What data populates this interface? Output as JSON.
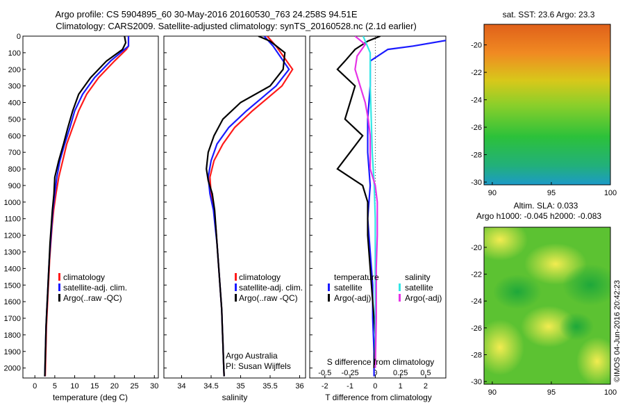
{
  "figure": {
    "title_line1": "Argo profile: CS 5904895_60 30-May-2016 20160530_763 24.258S 94.51E",
    "title_line2": "Climatology: CARS2009. Satellite-adjusted climatology: synTS_20160528.nc (2.1d earlier)",
    "credit": "©IMOS 04-Jun-2016 20:42:23",
    "owner_line1": "Argo Australia",
    "owner_line2": "PI: Susan Wijffels"
  },
  "colors": {
    "climatology": "#ff1a1a",
    "satellite": "#1a1aff",
    "argo": "#000000",
    "sal_satellite": "#33e6e6",
    "sal_argo": "#e633e6"
  },
  "legends": {
    "temp": [
      "climatology",
      "satellite-adj. clim.",
      "Argo(..raw -QC)"
    ],
    "sal": [
      "climatology",
      "satellite-adj. clim.",
      "Argo(..raw -QC)"
    ],
    "diff_headers": {
      "temperature": "temperature",
      "salinity": "salinity"
    },
    "diff_temp": [
      "satellite",
      "Argo(-adj)"
    ],
    "diff_sal": [
      "satellite",
      "Argo(-adj)"
    ]
  },
  "maps": {
    "top_title": "sat. SST: 23.6  Argo: 23.3",
    "bottom_title_line1": "Altim. SLA: 0.033",
    "bottom_title_line2": "Argo h1000: -0.045 h2000: -0.083",
    "yticks": [
      "-20",
      "-22",
      "-24",
      "-26",
      "-28",
      "-30"
    ],
    "xticks": [
      "90",
      "95",
      "100"
    ]
  },
  "chart_data": [
    {
      "type": "line",
      "xlabel": "temperature (deg C)",
      "xticks": [
        "0",
        "5",
        "10",
        "15",
        "20",
        "25",
        "30"
      ],
      "xlim": [
        -3,
        31
      ],
      "ylim": [
        0,
        2060
      ],
      "yticks": [
        "0",
        "100",
        "200",
        "300",
        "400",
        "500",
        "600",
        "700",
        "800",
        "900",
        "1000",
        "1100",
        "1200",
        "1300",
        "1400",
        "1500",
        "1600",
        "1700",
        "1800",
        "1900",
        "2000"
      ],
      "y_reversed": true,
      "series": [
        {
          "name": "climatology",
          "points": [
            [
              23.5,
              0
            ],
            [
              23.5,
              60
            ],
            [
              23,
              80
            ],
            [
              20,
              150
            ],
            [
              16,
              250
            ],
            [
              13,
              350
            ],
            [
              11,
              450
            ],
            [
              9.5,
              550
            ],
            [
              8,
              650
            ],
            [
              7,
              750
            ],
            [
              6,
              850
            ],
            [
              5.3,
              950
            ],
            [
              4.7,
              1050
            ],
            [
              4.3,
              1150
            ],
            [
              4,
              1250
            ],
            [
              3.7,
              1350
            ],
            [
              3.5,
              1450
            ],
            [
              3.3,
              1550
            ],
            [
              3.1,
              1650
            ],
            [
              2.9,
              1750
            ],
            [
              2.8,
              1850
            ],
            [
              2.7,
              1950
            ],
            [
              2.6,
              2050
            ]
          ]
        },
        {
          "name": "satellite-adj. clim.",
          "points": [
            [
              23.5,
              0
            ],
            [
              23.5,
              60
            ],
            [
              22.5,
              80
            ],
            [
              19,
              150
            ],
            [
              15,
              250
            ],
            [
              12,
              350
            ],
            [
              10,
              450
            ],
            [
              8.8,
              550
            ],
            [
              7.5,
              650
            ],
            [
              6.3,
              750
            ],
            [
              5.5,
              850
            ],
            [
              5,
              950
            ],
            [
              4.5,
              1050
            ],
            [
              4.2,
              1150
            ],
            [
              3.9,
              1250
            ],
            [
              3.6,
              1350
            ],
            [
              3.4,
              1450
            ],
            [
              3.2,
              1550
            ],
            [
              3,
              1650
            ],
            [
              2.8,
              1750
            ],
            [
              2.7,
              1850
            ],
            [
              2.6,
              1950
            ],
            [
              2.5,
              2050
            ]
          ]
        },
        {
          "name": "Argo(..raw -QC)",
          "points": [
            [
              22.5,
              0
            ],
            [
              22.8,
              40
            ],
            [
              22,
              80
            ],
            [
              18,
              150
            ],
            [
              14,
              250
            ],
            [
              11,
              350
            ],
            [
              9.5,
              450
            ],
            [
              8.3,
              550
            ],
            [
              7.2,
              650
            ],
            [
              6,
              750
            ],
            [
              5,
              850
            ],
            [
              4.8,
              950
            ],
            [
              4.4,
              1050
            ],
            [
              4.1,
              1150
            ],
            [
              3.8,
              1250
            ],
            [
              3.6,
              1350
            ],
            [
              3.4,
              1450
            ],
            [
              3.2,
              1550
            ],
            [
              3,
              1650
            ],
            [
              2.8,
              1750
            ],
            [
              2.7,
              1850
            ],
            [
              2.6,
              1950
            ],
            [
              2.5,
              2050
            ]
          ]
        }
      ]
    },
    {
      "type": "line",
      "xlabel": "salinity",
      "xticks": [
        "34",
        "34.5",
        "35",
        "35.5",
        "36"
      ],
      "xlim": [
        33.7,
        36.1
      ],
      "ylim": [
        0,
        2060
      ],
      "y_reversed": true,
      "series": [
        {
          "name": "climatology",
          "points": [
            [
              35.45,
              0
            ],
            [
              35.6,
              60
            ],
            [
              35.88,
              200
            ],
            [
              35.7,
              300
            ],
            [
              35.2,
              450
            ],
            [
              34.9,
              550
            ],
            [
              34.7,
              650
            ],
            [
              34.55,
              750
            ],
            [
              34.48,
              850
            ],
            [
              34.5,
              950
            ],
            [
              34.55,
              1050
            ],
            [
              34.58,
              1150
            ],
            [
              34.6,
              1250
            ],
            [
              34.62,
              1350
            ],
            [
              34.64,
              1450
            ],
            [
              34.66,
              1550
            ],
            [
              34.68,
              1650
            ],
            [
              34.69,
              1750
            ],
            [
              34.7,
              1850
            ],
            [
              34.71,
              1950
            ],
            [
              34.72,
              2050
            ]
          ]
        },
        {
          "name": "satellite-adj. clim.",
          "points": [
            [
              35.4,
              0
            ],
            [
              35.55,
              60
            ],
            [
              35.82,
              200
            ],
            [
              35.6,
              300
            ],
            [
              35.1,
              450
            ],
            [
              34.8,
              550
            ],
            [
              34.6,
              650
            ],
            [
              34.5,
              750
            ],
            [
              34.45,
              850
            ],
            [
              34.48,
              950
            ],
            [
              34.54,
              1050
            ],
            [
              34.57,
              1150
            ],
            [
              34.6,
              1250
            ],
            [
              34.62,
              1350
            ],
            [
              34.64,
              1450
            ],
            [
              34.66,
              1550
            ],
            [
              34.68,
              1650
            ],
            [
              34.69,
              1750
            ],
            [
              34.7,
              1850
            ],
            [
              34.71,
              1950
            ],
            [
              34.72,
              2050
            ]
          ]
        },
        {
          "name": "Argo(..raw -QC)",
          "points": [
            [
              35.3,
              0
            ],
            [
              35.5,
              30
            ],
            [
              35.75,
              100
            ],
            [
              35.72,
              200
            ],
            [
              35.5,
              300
            ],
            [
              35,
              400
            ],
            [
              34.7,
              500
            ],
            [
              34.55,
              600
            ],
            [
              34.45,
              700
            ],
            [
              34.42,
              800
            ],
            [
              34.45,
              870
            ],
            [
              34.52,
              950
            ],
            [
              34.56,
              1050
            ],
            [
              34.58,
              1150
            ],
            [
              34.6,
              1250
            ],
            [
              34.62,
              1350
            ],
            [
              34.64,
              1450
            ],
            [
              34.66,
              1550
            ],
            [
              34.68,
              1650
            ],
            [
              34.69,
              1750
            ],
            [
              34.7,
              1850
            ],
            [
              34.71,
              1950
            ],
            [
              34.72,
              2050
            ]
          ]
        }
      ]
    },
    {
      "type": "line",
      "xlabel": "T difference from climatology",
      "top_label": "S difference from climatology",
      "xticks": [
        "-2",
        "-1",
        "0",
        "1",
        "2"
      ],
      "xlim": [
        -2.6,
        2.8
      ],
      "s_ticks": [
        "-0.5",
        "-0.25",
        "0",
        "0.25",
        "0.5"
      ],
      "ylim": [
        0,
        2060
      ],
      "y_reversed": true,
      "zero_line": true,
      "series": [
        {
          "name": "temperature satellite",
          "points": [
            [
              3.8,
              0
            ],
            [
              1.5,
              60
            ],
            [
              0.5,
              80
            ],
            [
              -0.2,
              150
            ],
            [
              -0.2,
              300
            ],
            [
              -0.3,
              500
            ],
            [
              -0.3,
              700
            ],
            [
              -0.2,
              900
            ],
            [
              -0.3,
              1100
            ],
            [
              -0.2,
              1300
            ],
            [
              -0.1,
              1500
            ],
            [
              -0.1,
              1700
            ],
            [
              -0.05,
              1900
            ],
            [
              -0.05,
              2050
            ]
          ]
        },
        {
          "name": "temperature Argo(-adj)",
          "points": [
            [
              0.2,
              0
            ],
            [
              -0.3,
              30
            ],
            [
              -0.8,
              80
            ],
            [
              -1.2,
              150
            ],
            [
              -1.5,
              200
            ],
            [
              -0.8,
              300
            ],
            [
              -1,
              400
            ],
            [
              -1.2,
              500
            ],
            [
              -0.5,
              600
            ],
            [
              -1,
              700
            ],
            [
              -1.5,
              800
            ],
            [
              -0.5,
              900
            ],
            [
              -0.3,
              1000
            ],
            [
              -0.3,
              1200
            ],
            [
              -0.2,
              1400
            ],
            [
              -0.1,
              1600
            ],
            [
              0,
              1800
            ],
            [
              -0.05,
              2000
            ]
          ]
        },
        {
          "name": "salinity satellite",
          "points": [
            [
              -0.12,
              0
            ],
            [
              -0.05,
              100
            ],
            [
              -0.05,
              300
            ],
            [
              -0.04,
              500
            ],
            [
              -0.03,
              700
            ],
            [
              -0.01,
              900
            ],
            [
              0,
              1100
            ],
            [
              0,
              1400
            ],
            [
              0,
              1700
            ],
            [
              0,
              2000
            ]
          ]
        },
        {
          "name": "salinity Argo(-adj)",
          "points": [
            [
              -0.2,
              0
            ],
            [
              -0.1,
              50
            ],
            [
              -0.18,
              120
            ],
            [
              -0.2,
              200
            ],
            [
              -0.15,
              300
            ],
            [
              -0.1,
              400
            ],
            [
              -0.07,
              500
            ],
            [
              -0.05,
              600
            ],
            [
              -0.05,
              700
            ],
            [
              -0.05,
              800
            ],
            [
              0,
              900
            ],
            [
              0.02,
              1000
            ],
            [
              0.02,
              1200
            ],
            [
              0.01,
              1400
            ],
            [
              0.01,
              1700
            ],
            [
              0,
              2000
            ]
          ]
        }
      ]
    }
  ]
}
